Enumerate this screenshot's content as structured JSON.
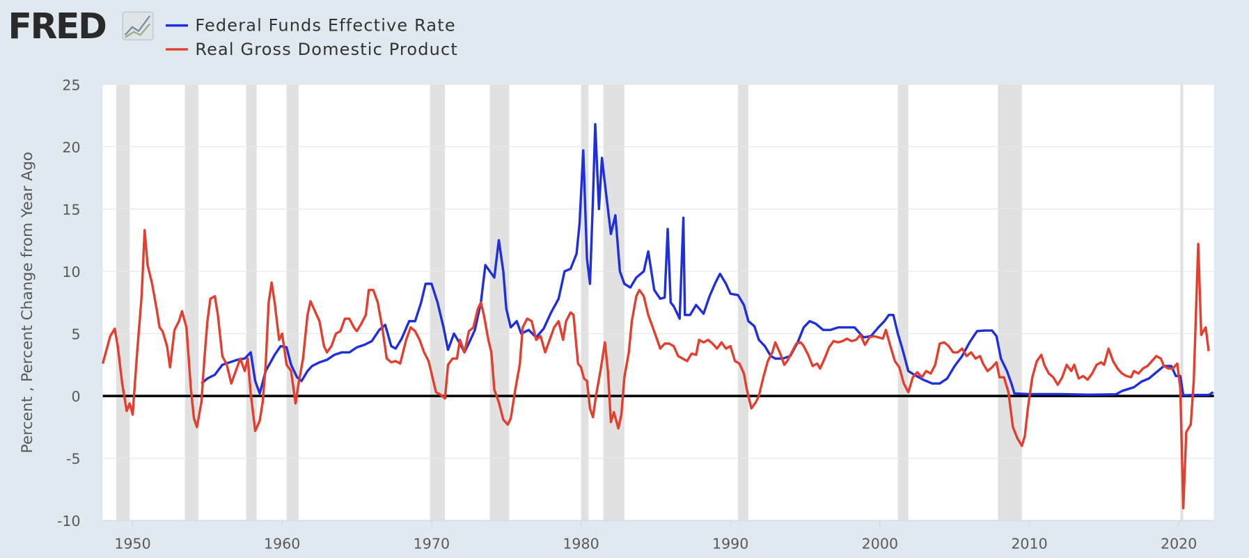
{
  "logo": "FRED",
  "chart_data": {
    "type": "line",
    "y_label": "Percent , Percent Change from Year Ago",
    "xlim": [
      1948,
      2022.35
    ],
    "ylim": [
      -10,
      25
    ],
    "xticks": [
      1950,
      1960,
      1970,
      1980,
      1990,
      2000,
      2010,
      2020
    ],
    "yticks": [
      -10,
      -5,
      0,
      5,
      10,
      15,
      20,
      25
    ],
    "grid": true,
    "recessions": [
      [
        1948.9,
        1949.8
      ],
      [
        1953.5,
        1954.4
      ],
      [
        1957.6,
        1958.3
      ],
      [
        1960.3,
        1961.1
      ],
      [
        1969.9,
        1970.9
      ],
      [
        1973.9,
        1975.2
      ],
      [
        1980.0,
        1980.5
      ],
      [
        1981.5,
        1982.9
      ],
      [
        1990.5,
        1991.2
      ],
      [
        2001.2,
        2001.9
      ],
      [
        2007.9,
        2009.5
      ],
      [
        2020.1,
        2020.3
      ]
    ],
    "series": [
      {
        "name": "Federal Funds Effective Rate",
        "color": "#1f2fdd",
        "x": [
          1954.6,
          1955.0,
          1955.5,
          1956.0,
          1956.5,
          1957.0,
          1957.5,
          1957.9,
          1958.2,
          1958.5,
          1958.9,
          1959.5,
          1959.9,
          1960.3,
          1960.6,
          1961.0,
          1961.3,
          1961.7,
          1962.0,
          1962.5,
          1963.0,
          1963.5,
          1964.0,
          1964.5,
          1965.0,
          1965.5,
          1966.0,
          1966.5,
          1966.9,
          1967.3,
          1967.6,
          1968.0,
          1968.5,
          1968.9,
          1969.3,
          1969.6,
          1970.0,
          1970.4,
          1970.8,
          1971.1,
          1971.5,
          1971.9,
          1972.2,
          1972.6,
          1972.9,
          1973.3,
          1973.6,
          1973.9,
          1974.2,
          1974.5,
          1974.8,
          1975.0,
          1975.3,
          1975.7,
          1976.0,
          1976.5,
          1977.0,
          1977.5,
          1978.0,
          1978.5,
          1978.9,
          1979.3,
          1979.7,
          1979.9,
          1980.15,
          1980.4,
          1980.6,
          1980.8,
          1980.95,
          1981.2,
          1981.4,
          1981.7,
          1982.0,
          1982.3,
          1982.6,
          1982.9,
          1983.3,
          1983.7,
          1984.2,
          1984.5,
          1984.9,
          1985.3,
          1985.6,
          1985.8,
          1986.0,
          1986.2,
          1986.6,
          1986.85,
          1986.95,
          1987.3,
          1987.7,
          1988.2,
          1988.6,
          1989.0,
          1989.3,
          1989.7,
          1990.0,
          1990.5,
          1990.9,
          1991.2,
          1991.6,
          1991.9,
          1992.3,
          1992.7,
          1993.0,
          1993.5,
          1994.0,
          1994.5,
          1994.9,
          1995.3,
          1995.7,
          1996.2,
          1996.7,
          1997.2,
          1997.7,
          1998.3,
          1998.9,
          1999.4,
          1999.9,
          2000.3,
          2000.6,
          2000.9,
          2001.2,
          2001.5,
          2001.9,
          2002.3,
          2002.9,
          2003.5,
          2004.0,
          2004.5,
          2005.0,
          2005.5,
          2006.0,
          2006.5,
          2007.0,
          2007.5,
          2007.8,
          2008.1,
          2008.5,
          2008.8,
          2009.0,
          2010.0,
          2012.0,
          2014.0,
          2015.8,
          2016.2,
          2017.0,
          2017.5,
          2018.0,
          2018.5,
          2019.0,
          2019.5,
          2019.8,
          2020.1,
          2020.3,
          2021.0,
          2022.0,
          2022.3
        ],
        "values": [
          1.0,
          1.4,
          1.7,
          2.5,
          2.7,
          2.9,
          3.0,
          3.5,
          1.2,
          0.2,
          2.0,
          3.3,
          4.0,
          3.9,
          2.5,
          1.5,
          1.2,
          2.0,
          2.4,
          2.7,
          2.9,
          3.3,
          3.5,
          3.5,
          3.9,
          4.1,
          4.4,
          5.3,
          5.7,
          4.0,
          3.8,
          4.6,
          6.0,
          6.0,
          7.5,
          9.0,
          9.0,
          7.5,
          5.5,
          3.7,
          5.0,
          4.2,
          3.5,
          4.5,
          5.3,
          7.5,
          10.5,
          10.0,
          9.5,
          12.5,
          10.0,
          7.0,
          5.5,
          6.0,
          5.0,
          5.3,
          4.7,
          5.4,
          6.7,
          7.8,
          10.0,
          10.2,
          11.4,
          13.8,
          19.7,
          11.0,
          9.0,
          15.8,
          21.8,
          15.0,
          19.1,
          16.0,
          13.0,
          14.5,
          10.0,
          9.0,
          8.7,
          9.5,
          10.0,
          11.6,
          8.5,
          7.8,
          7.9,
          13.4,
          7.5,
          7.2,
          6.2,
          14.3,
          6.5,
          6.5,
          7.3,
          6.6,
          8.0,
          9.1,
          9.8,
          9.0,
          8.2,
          8.1,
          7.3,
          6.0,
          5.6,
          4.5,
          4.0,
          3.2,
          3.0,
          3.0,
          3.2,
          4.3,
          5.5,
          6.0,
          5.8,
          5.3,
          5.3,
          5.5,
          5.5,
          5.5,
          4.7,
          4.8,
          5.5,
          6.0,
          6.5,
          6.5,
          5.0,
          3.8,
          2.0,
          1.7,
          1.3,
          1.0,
          1.0,
          1.4,
          2.4,
          3.2,
          4.3,
          5.2,
          5.25,
          5.25,
          4.8,
          3.0,
          2.0,
          1.0,
          0.2,
          0.15,
          0.15,
          0.1,
          0.13,
          0.4,
          0.7,
          1.15,
          1.4,
          1.9,
          2.4,
          2.4,
          1.6,
          1.6,
          0.05,
          0.08,
          0.08,
          0.3
        ]
      },
      {
        "name": "Real Gross Domestic Product",
        "color": "#e33e2e",
        "x": [
          1948.0,
          1948.5,
          1948.8,
          1949.0,
          1949.3,
          1949.6,
          1949.8,
          1950.0,
          1950.3,
          1950.6,
          1950.8,
          1951.0,
          1951.3,
          1951.6,
          1951.8,
          1952.0,
          1952.3,
          1952.5,
          1952.8,
          1953.1,
          1953.3,
          1953.6,
          1953.9,
          1954.1,
          1954.3,
          1954.6,
          1954.8,
          1955.0,
          1955.2,
          1955.5,
          1955.7,
          1956.0,
          1956.3,
          1956.6,
          1956.9,
          1957.2,
          1957.5,
          1957.7,
          1957.9,
          1958.2,
          1958.5,
          1958.7,
          1958.9,
          1959.1,
          1959.3,
          1959.5,
          1959.8,
          1960.0,
          1960.3,
          1960.6,
          1960.9,
          1961.1,
          1961.4,
          1961.7,
          1961.9,
          1962.2,
          1962.5,
          1962.8,
          1963.0,
          1963.3,
          1963.6,
          1963.9,
          1964.2,
          1964.5,
          1964.8,
          1965.0,
          1965.3,
          1965.6,
          1965.8,
          1966.1,
          1966.4,
          1966.7,
          1967.0,
          1967.3,
          1967.6,
          1967.9,
          1968.3,
          1968.6,
          1968.9,
          1969.2,
          1969.5,
          1969.8,
          1970.0,
          1970.3,
          1970.6,
          1970.9,
          1971.1,
          1971.4,
          1971.7,
          1971.9,
          1972.2,
          1972.5,
          1972.8,
          1973.1,
          1973.3,
          1973.5,
          1973.8,
          1974.0,
          1974.2,
          1974.5,
          1974.8,
          1975.1,
          1975.3,
          1975.6,
          1975.9,
          1976.1,
          1976.4,
          1976.7,
          1977.0,
          1977.3,
          1977.6,
          1977.9,
          1978.2,
          1978.5,
          1978.8,
          1979.0,
          1979.3,
          1979.5,
          1979.8,
          1980.0,
          1980.2,
          1980.4,
          1980.6,
          1980.8,
          1981.0,
          1981.3,
          1981.6,
          1981.8,
          1982.0,
          1982.2,
          1982.5,
          1982.7,
          1982.9,
          1983.2,
          1983.4,
          1983.7,
          1983.9,
          1984.2,
          1984.5,
          1984.8,
          1985.1,
          1985.3,
          1985.6,
          1985.9,
          1986.2,
          1986.5,
          1986.8,
          1987.1,
          1987.4,
          1987.7,
          1987.9,
          1988.2,
          1988.5,
          1988.8,
          1989.1,
          1989.4,
          1989.7,
          1990.0,
          1990.3,
          1990.6,
          1990.9,
          1991.1,
          1991.4,
          1991.7,
          1991.9,
          1992.2,
          1992.5,
          1992.8,
          1993.0,
          1993.3,
          1993.6,
          1993.8,
          1994.1,
          1994.4,
          1994.7,
          1994.9,
          1995.2,
          1995.5,
          1995.8,
          1996.0,
          1996.3,
          1996.6,
          1996.9,
          1997.2,
          1997.5,
          1997.8,
          1998.1,
          1998.4,
          1998.7,
          1999.0,
          1999.3,
          1999.6,
          1999.9,
          2000.2,
          2000.4,
          2000.7,
          2001.0,
          2001.3,
          2001.6,
          2001.9,
          2002.2,
          2002.5,
          2002.8,
          2003.1,
          2003.4,
          2003.7,
          2004.0,
          2004.3,
          2004.6,
          2004.9,
          2005.2,
          2005.5,
          2005.8,
          2006.1,
          2006.4,
          2006.7,
          2006.9,
          2007.2,
          2007.5,
          2007.8,
          2008.0,
          2008.3,
          2008.6,
          2008.9,
          2009.2,
          2009.5,
          2009.7,
          2009.9,
          2010.2,
          2010.5,
          2010.8,
          2011.0,
          2011.3,
          2011.6,
          2011.9,
          2012.2,
          2012.5,
          2012.8,
          2013.0,
          2013.3,
          2013.6,
          2013.9,
          2014.2,
          2014.5,
          2014.8,
          2015.0,
          2015.3,
          2015.6,
          2015.9,
          2016.2,
          2016.5,
          2016.8,
          2017.0,
          2017.3,
          2017.6,
          2017.9,
          2018.2,
          2018.5,
          2018.8,
          2019.0,
          2019.3,
          2019.6,
          2019.9,
          2020.1,
          2020.3,
          2020.5,
          2020.8,
          2021.0,
          2021.3,
          2021.5,
          2021.8,
          2022.0
        ],
        "values": [
          2.6,
          4.8,
          5.4,
          4.0,
          1.0,
          -1.2,
          -0.6,
          -1.5,
          3.5,
          8.0,
          13.3,
          10.5,
          9.0,
          7.0,
          5.5,
          5.2,
          4.0,
          2.3,
          5.3,
          6.0,
          6.8,
          5.5,
          0.5,
          -1.8,
          -2.5,
          -0.5,
          3.0,
          6.0,
          7.8,
          8.0,
          6.5,
          3.2,
          2.5,
          1.0,
          2.0,
          3.0,
          2.0,
          3.0,
          0.2,
          -2.8,
          -2.0,
          -0.5,
          2.5,
          7.5,
          9.1,
          7.5,
          4.5,
          5.0,
          2.5,
          2.0,
          -0.6,
          1.0,
          3.0,
          6.5,
          7.6,
          6.8,
          6.0,
          4.0,
          3.5,
          4.0,
          5.0,
          5.2,
          6.2,
          6.2,
          5.5,
          5.2,
          5.8,
          6.5,
          8.5,
          8.5,
          7.5,
          5.5,
          3.0,
          2.7,
          2.8,
          2.6,
          4.5,
          5.5,
          5.2,
          4.5,
          3.5,
          2.8,
          1.8,
          0.3,
          0.1,
          -0.2,
          2.5,
          3.0,
          3.0,
          4.5,
          3.5,
          5.2,
          5.5,
          7.0,
          7.5,
          6.5,
          4.5,
          3.5,
          0.5,
          -0.5,
          -1.9,
          -2.3,
          -1.8,
          0.5,
          2.5,
          5.5,
          6.2,
          6.0,
          4.5,
          4.8,
          3.5,
          4.5,
          5.5,
          6.0,
          4.5,
          6.0,
          6.7,
          6.5,
          2.6,
          2.3,
          1.4,
          1.2,
          -1.0,
          -1.7,
          0.0,
          2.0,
          4.3,
          2.0,
          -2.1,
          -1.3,
          -2.6,
          -1.5,
          1.5,
          3.5,
          6.0,
          8.0,
          8.5,
          8.0,
          6.5,
          5.5,
          4.5,
          3.8,
          4.2,
          4.2,
          4.0,
          3.2,
          3.0,
          2.8,
          3.4,
          3.3,
          4.5,
          4.3,
          4.5,
          4.2,
          3.8,
          4.3,
          3.8,
          4.0,
          2.8,
          2.6,
          1.8,
          0.5,
          -1.0,
          -0.5,
          0.0,
          1.5,
          2.8,
          3.5,
          4.3,
          3.5,
          2.5,
          2.8,
          3.5,
          4.2,
          4.3,
          4.0,
          3.3,
          2.4,
          2.6,
          2.2,
          3.0,
          3.9,
          4.4,
          4.3,
          4.4,
          4.6,
          4.4,
          4.5,
          4.9,
          4.1,
          4.7,
          4.8,
          4.7,
          4.6,
          5.3,
          4.0,
          2.8,
          2.3,
          1.0,
          0.3,
          1.5,
          1.9,
          1.5,
          2.0,
          1.8,
          2.5,
          4.2,
          4.3,
          4.0,
          3.5,
          3.5,
          3.8,
          3.2,
          3.5,
          3.0,
          3.2,
          2.6,
          2.0,
          2.3,
          2.7,
          1.5,
          1.5,
          0.3,
          -2.5,
          -3.4,
          -4.0,
          -3.2,
          -1.0,
          1.5,
          2.8,
          3.3,
          2.5,
          1.8,
          1.5,
          0.9,
          1.5,
          2.5,
          2.0,
          2.5,
          1.4,
          1.6,
          1.3,
          1.8,
          2.5,
          2.7,
          2.5,
          3.8,
          2.8,
          2.2,
          1.8,
          1.6,
          1.5,
          2.0,
          1.8,
          2.2,
          2.4,
          2.8,
          3.2,
          3.0,
          2.4,
          2.2,
          2.2,
          2.6,
          0.6,
          -9.0,
          -2.9,
          -2.3,
          1.2,
          12.2,
          4.9,
          5.5,
          3.6
        ]
      }
    ]
  }
}
